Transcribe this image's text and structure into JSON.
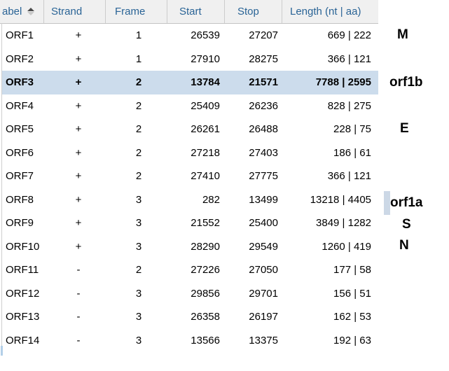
{
  "header": {
    "columns": [
      {
        "label": "abel",
        "sorted": "ascending"
      },
      {
        "label": "Strand"
      },
      {
        "label": "Frame"
      },
      {
        "label": "Start"
      },
      {
        "label": "Stop"
      },
      {
        "label": "Length (nt | aa)"
      }
    ]
  },
  "rows": [
    {
      "label": "ORF1",
      "strand": "+",
      "frame": "1",
      "start": "26539",
      "stop": "27207",
      "length": "669 | 222",
      "highlighted": false
    },
    {
      "label": "ORF2",
      "strand": "+",
      "frame": "1",
      "start": "27910",
      "stop": "28275",
      "length": "366 | 121",
      "highlighted": false
    },
    {
      "label": "ORF3",
      "strand": "+",
      "frame": "2",
      "start": "13784",
      "stop": "21571",
      "length": "7788 | 2595",
      "highlighted": true
    },
    {
      "label": "ORF4",
      "strand": "+",
      "frame": "2",
      "start": "25409",
      "stop": "26236",
      "length": "828 | 275",
      "highlighted": false
    },
    {
      "label": "ORF5",
      "strand": "+",
      "frame": "2",
      "start": "26261",
      "stop": "26488",
      "length": "228 | 75",
      "highlighted": false
    },
    {
      "label": "ORF6",
      "strand": "+",
      "frame": "2",
      "start": "27218",
      "stop": "27403",
      "length": "186 | 61",
      "highlighted": false
    },
    {
      "label": "ORF7",
      "strand": "+",
      "frame": "2",
      "start": "27410",
      "stop": "27775",
      "length": "366 | 121",
      "highlighted": false
    },
    {
      "label": "ORF8",
      "strand": "+",
      "frame": "3",
      "start": "282",
      "stop": "13499",
      "length": "13218 | 4405",
      "highlighted": false
    },
    {
      "label": "ORF9",
      "strand": "+",
      "frame": "3",
      "start": "21552",
      "stop": "25400",
      "length": "3849 | 1282",
      "highlighted": false
    },
    {
      "label": "ORF10",
      "strand": "+",
      "frame": "3",
      "start": "28290",
      "stop": "29549",
      "length": "1260 | 419",
      "highlighted": false
    },
    {
      "label": "ORF11",
      "strand": "-",
      "frame": "2",
      "start": "27226",
      "stop": "27050",
      "length": "177 | 58",
      "highlighted": false
    },
    {
      "label": "ORF12",
      "strand": "-",
      "frame": "3",
      "start": "29856",
      "stop": "29701",
      "length": "156 | 51",
      "highlighted": false
    },
    {
      "label": "ORF13",
      "strand": "-",
      "frame": "3",
      "start": "26358",
      "stop": "26197",
      "length": "162 | 53",
      "highlighted": false
    },
    {
      "label": "ORF14",
      "strand": "-",
      "frame": "3",
      "start": "13566",
      "stop": "13375",
      "length": "192 | 63",
      "highlighted": false
    }
  ],
  "annotations": [
    {
      "text": "M"
    },
    {
      "text": "orf1b"
    },
    {
      "text": "E"
    },
    {
      "text": "orf1a"
    },
    {
      "text": "S"
    },
    {
      "text": "N"
    }
  ],
  "colors": {
    "header_text": "#2a6496",
    "header_bg": "#f0f0f0",
    "border": "#cccccc",
    "selected_row_bg": "#ccdcec",
    "selection_mark": "#ccd8e6",
    "scroll_tick": "#b3cfe8"
  }
}
